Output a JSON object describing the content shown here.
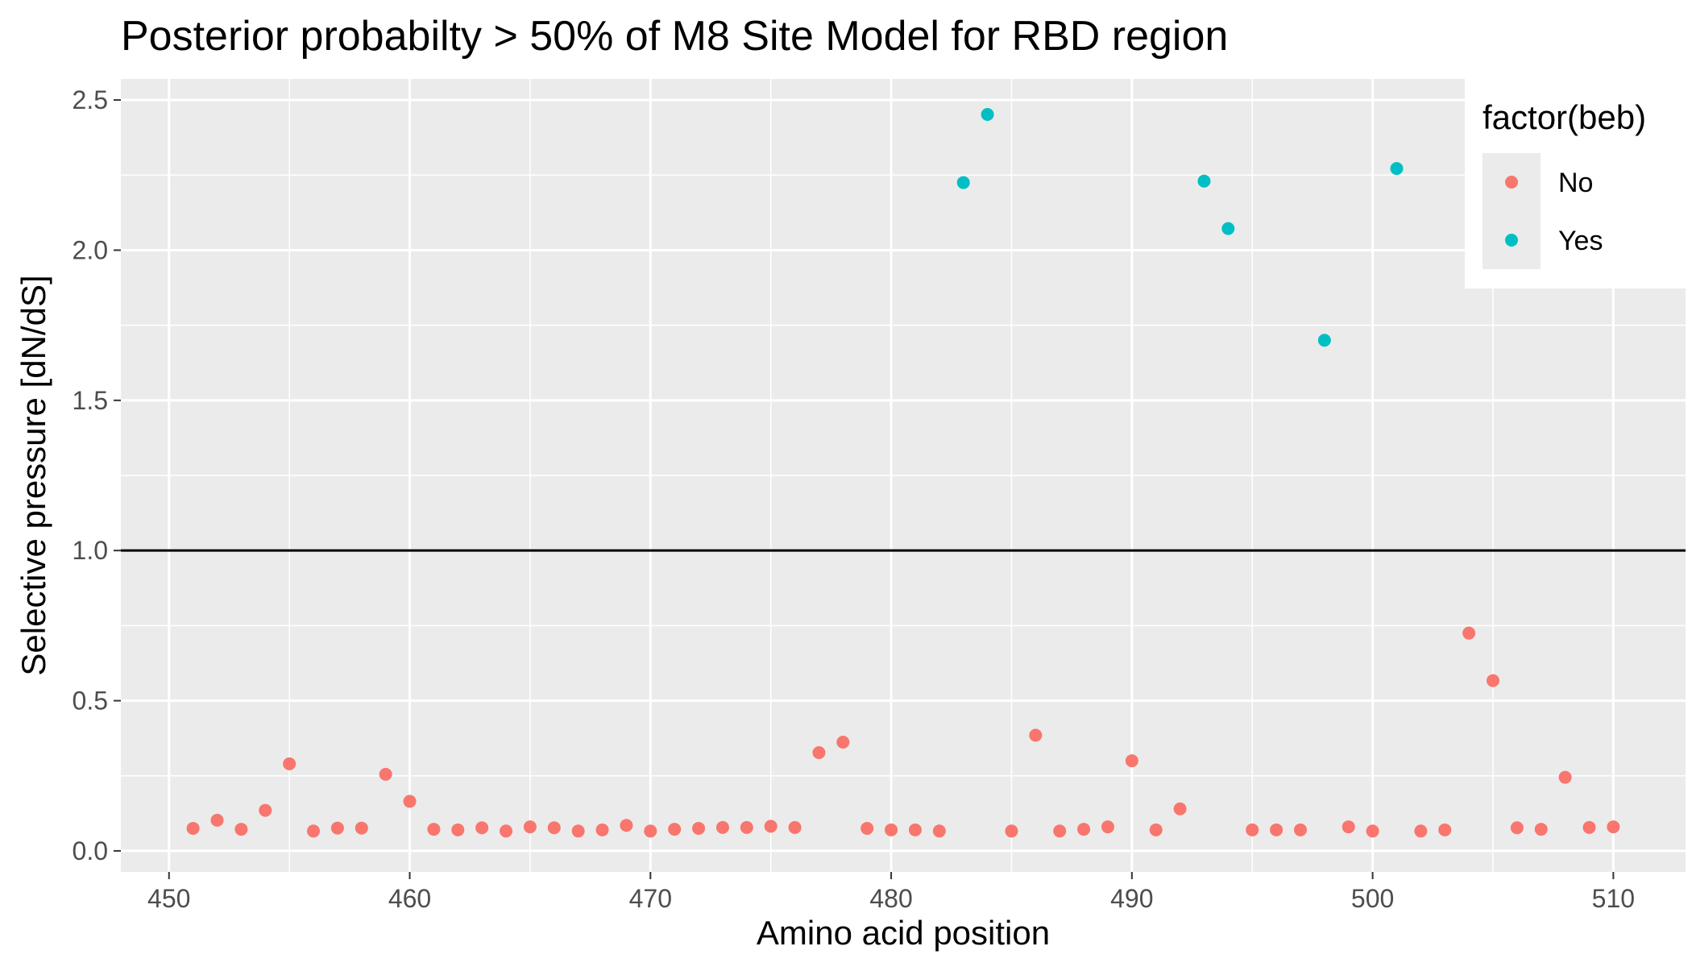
{
  "chart_data": {
    "type": "scatter",
    "title": "Posterior probabilty > 50% of M8 Site Model for RBD region",
    "xlabel": "Amino acid position",
    "ylabel": "Selective pressure [dN/dS]",
    "xlim": [
      448,
      513
    ],
    "ylim": [
      -0.07,
      2.57
    ],
    "xticks": [
      450,
      460,
      470,
      480,
      490,
      500,
      510
    ],
    "yticks": [
      0.0,
      0.5,
      1.0,
      1.5,
      2.0,
      2.5
    ],
    "xtick_labels": [
      "450",
      "460",
      "470",
      "480",
      "490",
      "500",
      "510"
    ],
    "ytick_labels": [
      "0.0",
      "0.5",
      "1.0",
      "1.5",
      "2.0",
      "2.5"
    ],
    "hline": 1.0,
    "grid": true,
    "legend": {
      "title": "factor(beb)",
      "placement": "top-right",
      "entries": [
        {
          "label": "No",
          "color": "#F8766D"
        },
        {
          "label": "Yes",
          "color": "#00BFC4"
        }
      ]
    },
    "series": [
      {
        "name": "No",
        "color": "#F8766D",
        "points": [
          [
            451,
            0.075
          ],
          [
            452,
            0.102
          ],
          [
            453,
            0.072
          ],
          [
            454,
            0.135
          ],
          [
            455,
            0.29
          ],
          [
            456,
            0.066
          ],
          [
            457,
            0.076
          ],
          [
            458,
            0.076
          ],
          [
            459,
            0.255
          ],
          [
            460,
            0.165
          ],
          [
            461,
            0.072
          ],
          [
            462,
            0.07
          ],
          [
            463,
            0.077
          ],
          [
            464,
            0.066
          ],
          [
            465,
            0.08
          ],
          [
            466,
            0.077
          ],
          [
            467,
            0.066
          ],
          [
            468,
            0.07
          ],
          [
            469,
            0.085
          ],
          [
            470,
            0.066
          ],
          [
            471,
            0.072
          ],
          [
            472,
            0.075
          ],
          [
            473,
            0.078
          ],
          [
            474,
            0.078
          ],
          [
            475,
            0.082
          ],
          [
            476,
            0.078
          ],
          [
            477,
            0.327
          ],
          [
            478,
            0.362
          ],
          [
            479,
            0.075
          ],
          [
            480,
            0.07
          ],
          [
            481,
            0.07
          ],
          [
            482,
            0.066
          ],
          [
            485,
            0.066
          ],
          [
            486,
            0.385
          ],
          [
            487,
            0.066
          ],
          [
            488,
            0.072
          ],
          [
            489,
            0.08
          ],
          [
            490,
            0.3
          ],
          [
            491,
            0.07
          ],
          [
            492,
            0.14
          ],
          [
            495,
            0.07
          ],
          [
            496,
            0.07
          ],
          [
            497,
            0.07
          ],
          [
            499,
            0.08
          ],
          [
            500,
            0.066
          ],
          [
            502,
            0.066
          ],
          [
            503,
            0.07
          ],
          [
            504,
            0.725
          ],
          [
            505,
            0.567
          ],
          [
            506,
            0.077
          ],
          [
            507,
            0.072
          ],
          [
            508,
            0.245
          ],
          [
            509,
            0.078
          ],
          [
            510,
            0.08
          ]
        ]
      },
      {
        "name": "Yes",
        "color": "#00BFC4",
        "points": [
          [
            483,
            2.225
          ],
          [
            484,
            2.452
          ],
          [
            493,
            2.23
          ],
          [
            494,
            2.072
          ],
          [
            498,
            1.7
          ],
          [
            501,
            2.272
          ]
        ]
      }
    ]
  }
}
